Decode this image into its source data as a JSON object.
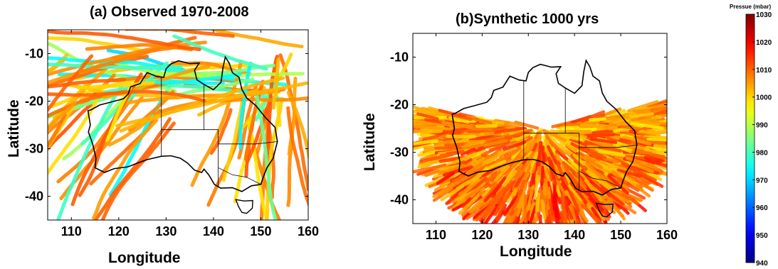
{
  "chart_data": [
    {
      "type": "scatter",
      "title": "(a) Observed 1970-2008",
      "xlabel": "Longitude",
      "ylabel": "Latitude",
      "xlim": [
        105,
        160
      ],
      "ylim": [
        -45,
        -5
      ],
      "xticks": [
        110,
        120,
        130,
        140,
        150,
        160
      ],
      "yticks": [
        -10,
        -20,
        -30,
        -40
      ],
      "grid": false
    },
    {
      "type": "scatter",
      "title": "(b)Synthetic 1000 yrs",
      "xlabel": "Longitude",
      "ylabel": "Latitude",
      "xlim": [
        105,
        160
      ],
      "ylim": [
        -45,
        -5
      ],
      "xticks": [
        110,
        120,
        130,
        140,
        150,
        160
      ],
      "yticks": [
        -10,
        -20,
        -30,
        -40
      ],
      "grid": false
    }
  ],
  "colorbar": {
    "title": "Pressue (mbar)",
    "min": 940,
    "max": 1030,
    "ticks": [
      1030,
      1020,
      1010,
      1000,
      990,
      980,
      970,
      960,
      950,
      940
    ],
    "colors": [
      "#00008f",
      "#0000ff",
      "#0080ff",
      "#00ffff",
      "#80ff80",
      "#ffff00",
      "#ff8000",
      "#ff0000",
      "#800000"
    ]
  },
  "australia_outline": [
    [
      113.5,
      -22
    ],
    [
      114,
      -25
    ],
    [
      113.6,
      -26.5
    ],
    [
      114.5,
      -29
    ],
    [
      115.2,
      -32
    ],
    [
      115,
      -34
    ],
    [
      117,
      -35
    ],
    [
      119,
      -34.2
    ],
    [
      122,
      -33.8
    ],
    [
      124,
      -33
    ],
    [
      126,
      -32.3
    ],
    [
      129,
      -31.6
    ],
    [
      131,
      -31.5
    ],
    [
      133,
      -32
    ],
    [
      134.5,
      -33
    ],
    [
      136,
      -34.5
    ],
    [
      137.5,
      -35
    ],
    [
      138,
      -34.3
    ],
    [
      139,
      -35.5
    ],
    [
      140.2,
      -37.5
    ],
    [
      141.5,
      -38.3
    ],
    [
      144,
      -38.2
    ],
    [
      146,
      -39
    ],
    [
      148,
      -37.8
    ],
    [
      150,
      -37.5
    ],
    [
      150.5,
      -36
    ],
    [
      151.3,
      -34
    ],
    [
      152.6,
      -32
    ],
    [
      153.5,
      -28.5
    ],
    [
      153,
      -25.5
    ],
    [
      151,
      -23.5
    ],
    [
      149,
      -21
    ],
    [
      147,
      -19.3
    ],
    [
      146,
      -17.5
    ],
    [
      145.4,
      -15
    ],
    [
      144,
      -14
    ],
    [
      143.3,
      -12
    ],
    [
      142.5,
      -10.7
    ],
    [
      142,
      -13
    ],
    [
      141.6,
      -16
    ],
    [
      140,
      -17.6
    ],
    [
      138,
      -16.5
    ],
    [
      136.5,
      -15.5
    ],
    [
      136,
      -13.5
    ],
    [
      137,
      -12
    ],
    [
      135,
      -12.1
    ],
    [
      132.6,
      -11.5
    ],
    [
      131,
      -12.2
    ],
    [
      130,
      -13.2
    ],
    [
      129.5,
      -15
    ],
    [
      128,
      -14.8
    ],
    [
      126,
      -14
    ],
    [
      124.5,
      -16.3
    ],
    [
      122.5,
      -17
    ],
    [
      122,
      -18.5
    ],
    [
      121,
      -19.5
    ],
    [
      118,
      -20.3
    ],
    [
      116,
      -20.8
    ],
    [
      114.2,
      -21.8
    ]
  ],
  "tasmania_outline": [
    [
      144.7,
      -40.7
    ],
    [
      146.5,
      -41
    ],
    [
      148.3,
      -40.9
    ],
    [
      148.2,
      -42.5
    ],
    [
      147,
      -43.6
    ],
    [
      146,
      -43.4
    ],
    [
      145.3,
      -42.2
    ],
    [
      144.7,
      -40.7
    ]
  ],
  "state_borders": [
    [
      [
        129,
        -14.8
      ],
      [
        129,
        -31.6
      ]
    ],
    [
      [
        129,
        -26
      ],
      [
        141,
        -26
      ]
    ],
    [
      [
        138,
        -16.5
      ],
      [
        138,
        -26
      ]
    ],
    [
      [
        141,
        -26
      ],
      [
        141,
        -38
      ]
    ],
    [
      [
        141,
        -29
      ],
      [
        149,
        -29
      ],
      [
        153.5,
        -28.5
      ]
    ],
    [
      [
        141,
        -34
      ],
      [
        144,
        -35.5
      ],
      [
        147,
        -36
      ],
      [
        150,
        -37.5
      ]
    ]
  ]
}
